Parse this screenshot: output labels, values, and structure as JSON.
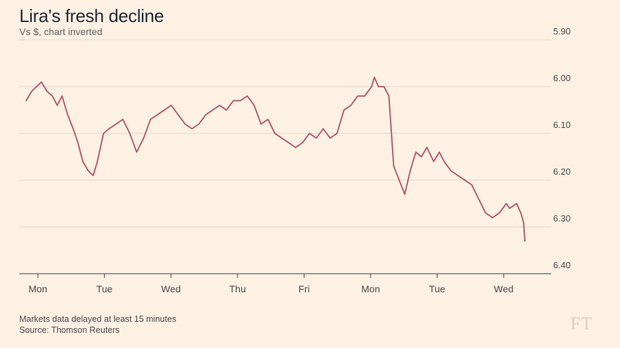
{
  "header": {
    "title": "Lira's fresh decline",
    "subtitle": "Vs $, chart inverted"
  },
  "footer": {
    "note": "Markets data delayed at least 15 minutes",
    "source": "Source: Thomson Reuters",
    "logo": "FT"
  },
  "colors": {
    "background": "#fdf1e4",
    "line": "#b35c6e",
    "grid": "#e3d6c7",
    "axis": "#3a3a3a",
    "text": "#33302e"
  },
  "chart_data": {
    "type": "line",
    "title": "Lira's fresh decline",
    "subtitle": "Vs $, chart inverted",
    "y_inverted": true,
    "ylim": [
      5.9,
      6.4
    ],
    "y_ticks": [
      "5.90",
      "6.00",
      "6.10",
      "6.20",
      "6.30",
      "6.40"
    ],
    "y_tick_values": [
      5.9,
      6.0,
      6.1,
      6.2,
      6.3,
      6.4
    ],
    "grid": true,
    "x_ticks": [
      "Mon",
      "Tue",
      "Wed",
      "Thu",
      "Fri",
      "Mon",
      "Tue",
      "Wed"
    ],
    "series": [
      {
        "name": "",
        "x": [
          0.0,
          0.08,
          0.15,
          0.22,
          0.3,
          0.38,
          0.45,
          0.52,
          0.6,
          0.68,
          0.75,
          0.82,
          0.9,
          0.97,
          1.03,
          1.12,
          1.2,
          1.3,
          1.4,
          1.5,
          1.6,
          1.7,
          1.8,
          1.9,
          2.0,
          2.1,
          2.2,
          2.3,
          2.4,
          2.5,
          2.6,
          2.7,
          2.8,
          2.9,
          3.0,
          3.1,
          3.2,
          3.3,
          3.4,
          3.5,
          3.6,
          3.7,
          3.8,
          3.9,
          4.0,
          4.1,
          4.2,
          4.3,
          4.4,
          4.5,
          4.6,
          4.7,
          4.8,
          4.9,
          5.0,
          5.04,
          5.1,
          5.18,
          5.25,
          5.32,
          5.4,
          5.48,
          5.56,
          5.64,
          5.72,
          5.8,
          5.9,
          5.98,
          6.05,
          6.15,
          6.25,
          6.35,
          6.45,
          6.55,
          6.65,
          6.75,
          6.85,
          6.95,
          7.0,
          7.1,
          7.16,
          7.2,
          7.22
        ],
        "values": [
          6.03,
          6.01,
          6.0,
          5.99,
          6.01,
          6.02,
          6.04,
          6.02,
          6.06,
          6.09,
          6.12,
          6.16,
          6.18,
          6.19,
          6.16,
          6.1,
          6.09,
          6.08,
          6.07,
          6.1,
          6.14,
          6.11,
          6.07,
          6.06,
          6.05,
          6.04,
          6.06,
          6.08,
          6.09,
          6.08,
          6.06,
          6.05,
          6.04,
          6.05,
          6.03,
          6.03,
          6.02,
          6.04,
          6.08,
          6.07,
          6.1,
          6.11,
          6.12,
          6.13,
          6.12,
          6.1,
          6.11,
          6.09,
          6.11,
          6.1,
          6.05,
          6.04,
          6.02,
          6.02,
          6.0,
          5.98,
          6.0,
          6.0,
          6.02,
          6.17,
          6.2,
          6.23,
          6.18,
          6.14,
          6.15,
          6.13,
          6.16,
          6.14,
          6.16,
          6.18,
          6.19,
          6.2,
          6.21,
          6.24,
          6.27,
          6.28,
          6.27,
          6.25,
          6.26,
          6.25,
          6.27,
          6.29,
          6.33
        ]
      }
    ]
  }
}
